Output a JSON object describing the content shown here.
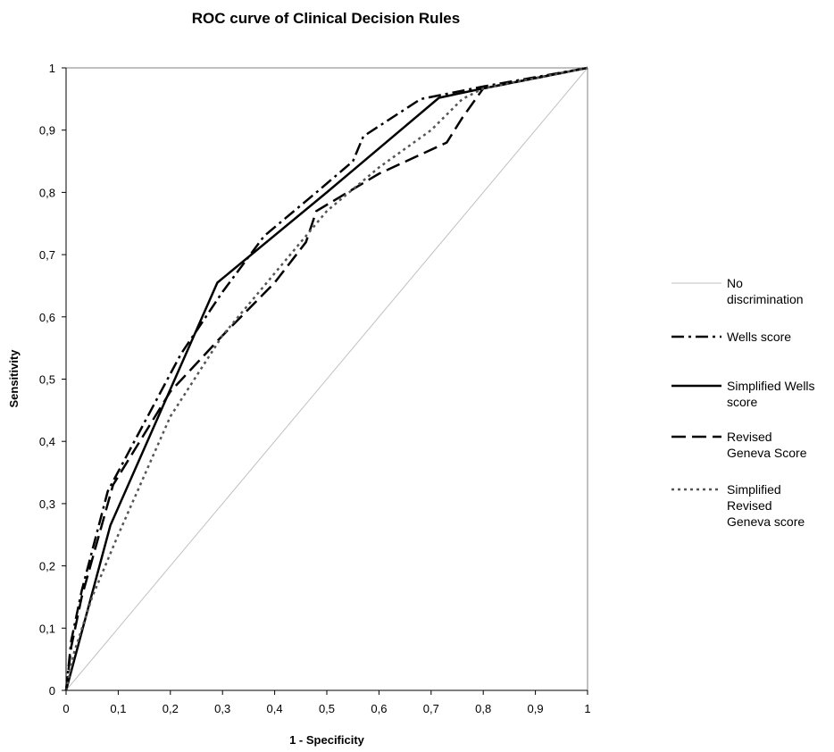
{
  "chart_data": {
    "type": "line",
    "title": "ROC curve of Clinical Decision Rules",
    "xlabel": "1 - Specificity",
    "ylabel": "Sensitivity",
    "xlim": [
      0,
      1
    ],
    "ylim": [
      0,
      1
    ],
    "x_ticks": [
      "0",
      "0,1",
      "0,2",
      "0,3",
      "0,4",
      "0,5",
      "0,6",
      "0,7",
      "0,8",
      "0,9",
      "1"
    ],
    "y_ticks": [
      "0",
      "0,1",
      "0,2",
      "0,3",
      "0,4",
      "0,5",
      "0,6",
      "0,7",
      "0,8",
      "0,9",
      "1"
    ],
    "grid": false,
    "legend_position": "right",
    "series": [
      {
        "name": "No discrimination",
        "legend_lines": [
          "No",
          "discrimination"
        ],
        "color": "#c0c0c0",
        "style": "solid",
        "x": [
          0,
          1
        ],
        "y": [
          0,
          1
        ]
      },
      {
        "name": "Wells score",
        "legend_lines": [
          "Wells score"
        ],
        "color": "#000000",
        "style": "dash-dot",
        "x": [
          0,
          0.01,
          0.03,
          0.08,
          0.15,
          0.22,
          0.3,
          0.38,
          0.48,
          0.55,
          0.57,
          0.68,
          0.8,
          1
        ],
        "y": [
          0,
          0.08,
          0.16,
          0.32,
          0.43,
          0.54,
          0.64,
          0.73,
          0.8,
          0.85,
          0.89,
          0.95,
          0.97,
          1
        ]
      },
      {
        "name": "Simplified Wells score",
        "legend_lines": [
          "Simplified Wells",
          "score"
        ],
        "color": "#000000",
        "style": "solid",
        "x": [
          0,
          0.085,
          0.29,
          0.5,
          0.715,
          0.8,
          1
        ],
        "y": [
          0,
          0.265,
          0.655,
          0.8,
          0.952,
          0.967,
          1
        ]
      },
      {
        "name": "Revised Geneva Score",
        "legend_lines": [
          "Revised",
          "Geneva Score"
        ],
        "color": "#000000",
        "style": "long-dash",
        "x": [
          0,
          0.01,
          0.03,
          0.09,
          0.2,
          0.3,
          0.4,
          0.46,
          0.48,
          0.6,
          0.73,
          0.76,
          0.8,
          1
        ],
        "y": [
          0,
          0.07,
          0.15,
          0.33,
          0.48,
          0.57,
          0.655,
          0.72,
          0.77,
          0.83,
          0.88,
          0.92,
          0.967,
          1
        ]
      },
      {
        "name": "Simplified Revised Geneva score",
        "legend_lines": [
          "Simplified",
          "Revised",
          "Geneva score"
        ],
        "color": "#555555",
        "style": "dotted",
        "x": [
          0,
          0.015,
          0.05,
          0.1,
          0.2,
          0.3,
          0.4,
          0.5,
          0.6,
          0.7,
          0.76,
          0.8,
          1
        ],
        "y": [
          0,
          0.06,
          0.15,
          0.25,
          0.44,
          0.57,
          0.67,
          0.77,
          0.84,
          0.9,
          0.95,
          0.967,
          1
        ]
      }
    ]
  }
}
